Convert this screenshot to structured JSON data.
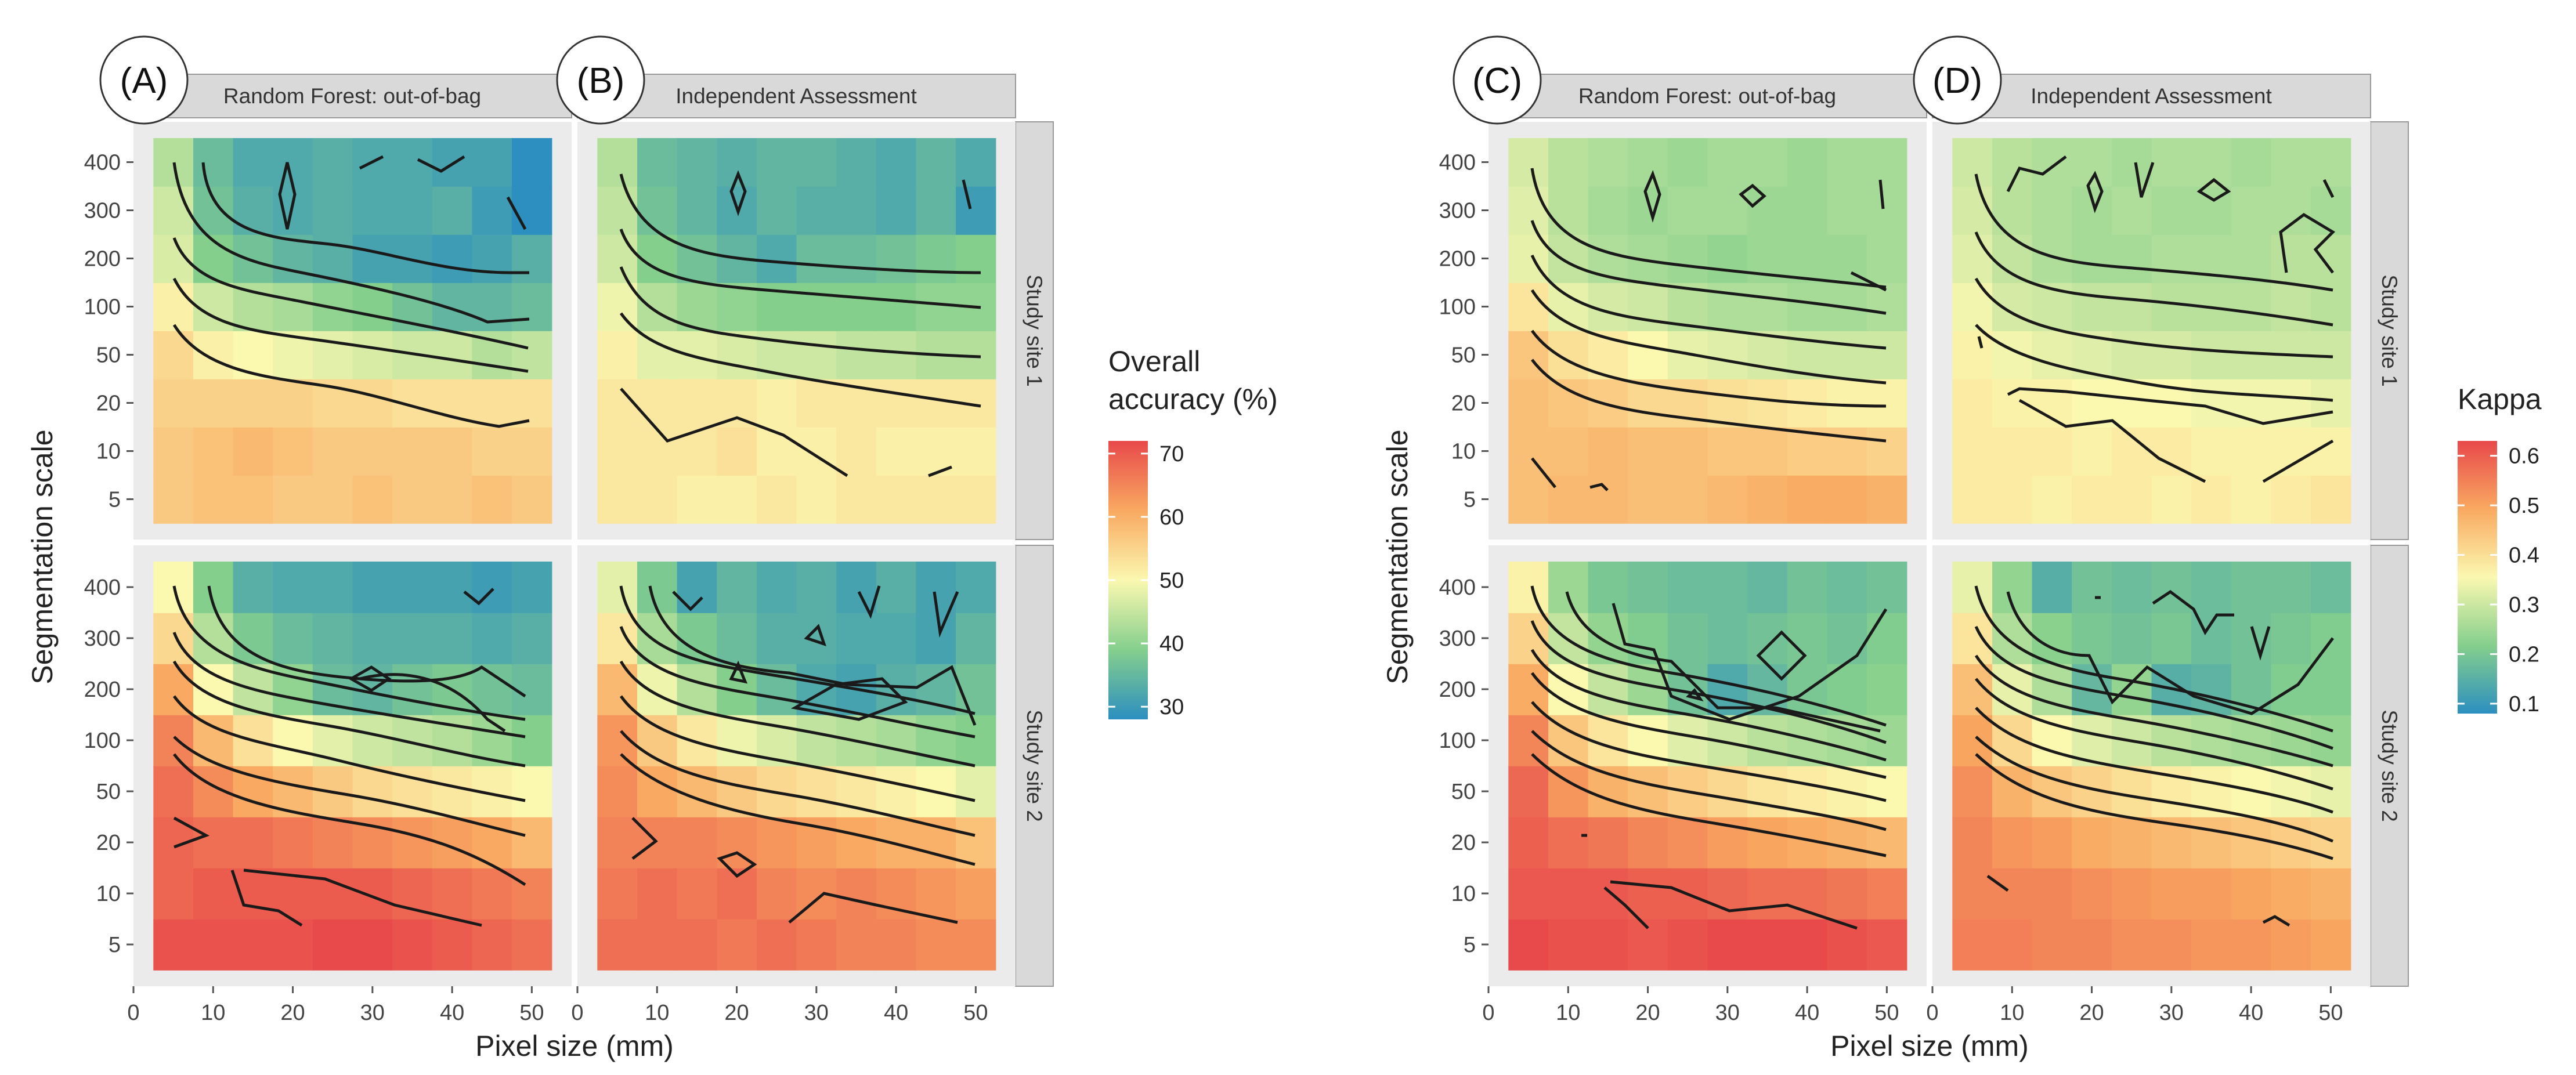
{
  "figure": {
    "letters": [
      "(A)",
      "(B)",
      "(C)",
      "(D)"
    ],
    "strips": {
      "col_oob": "Random Forest: out-of-bag",
      "col_indep": "Independent Assessment",
      "row_site1": "Study site 1",
      "row_site2": "Study site 2"
    },
    "ylabel": "Segmentation scale",
    "xlabel": "Pixel size (mm)",
    "x_ticks": [
      "0",
      "10",
      "20",
      "30",
      "40",
      "50"
    ],
    "y_ticks": [
      "5",
      "10",
      "20",
      "50",
      "100",
      "200",
      "300",
      "400"
    ],
    "legend_left": {
      "title_line1": "Overall",
      "title_line2": "accuracy (%)",
      "ticks": [
        "70",
        "60",
        "50",
        "40",
        "30"
      ]
    },
    "legend_right": {
      "title": "Kappa",
      "ticks": [
        "0.6",
        "0.5",
        "0.4",
        "0.3",
        "0.2",
        "0.1"
      ]
    }
  },
  "colors": {
    "scale_low": "#2c8fbf",
    "scale_mid": "#fbf8b0",
    "scale_high": "#e8494b",
    "strip_fill": "#d9d9d9",
    "panel_bg": "#ebebeb",
    "contour": "#1a1a1a"
  },
  "chart_data": [
    {
      "type": "heatmap",
      "panel": "A",
      "title": "Random Forest: out-of-bag",
      "row": "Study site 1",
      "metric": "Overall accuracy (%)",
      "x": [
        5,
        10,
        15,
        20,
        25,
        30,
        35,
        40,
        45,
        50
      ],
      "y": [
        5,
        10,
        20,
        50,
        100,
        200,
        300,
        400
      ],
      "values": [
        [
          56,
          57,
          57,
          56,
          56,
          57,
          56,
          56,
          57,
          56
        ],
        [
          56,
          57,
          58,
          57,
          56,
          56,
          56,
          56,
          55,
          55
        ],
        [
          55,
          55,
          55,
          55,
          54,
          54,
          53,
          53,
          53,
          53
        ],
        [
          54,
          51,
          50,
          49,
          48,
          47,
          46,
          46,
          44,
          45
        ],
        [
          51,
          46,
          44,
          43,
          41,
          40,
          38,
          36,
          36,
          37
        ],
        [
          47,
          40,
          38,
          36,
          35,
          33,
          33,
          32,
          33,
          35
        ],
        [
          46,
          38,
          35,
          34,
          35,
          34,
          34,
          35,
          32,
          30
        ],
        [
          44,
          37,
          34,
          34,
          35,
          34,
          34,
          33,
          33,
          30
        ]
      ],
      "xlim": [
        0,
        55
      ],
      "xlabel": "Pixel size (mm)",
      "ylabel": "Segmentation scale"
    },
    {
      "type": "heatmap",
      "panel": "B",
      "title": "Independent Assessment",
      "row": "Study site 1",
      "metric": "Overall accuracy (%)",
      "x": [
        5,
        10,
        15,
        20,
        25,
        30,
        35,
        40,
        45,
        50
      ],
      "y": [
        5,
        10,
        20,
        50,
        100,
        200,
        300,
        400
      ],
      "values": [
        [
          52,
          52,
          51,
          51,
          52,
          51,
          52,
          52,
          52,
          52
        ],
        [
          52,
          52,
          52,
          53,
          51,
          51,
          52,
          51,
          51,
          51
        ],
        [
          52,
          52,
          52,
          52,
          51,
          52,
          52,
          52,
          52,
          52
        ],
        [
          51,
          48,
          48,
          47,
          46,
          46,
          45,
          45,
          44,
          44
        ],
        [
          49,
          44,
          42,
          41,
          40,
          40,
          40,
          40,
          41,
          41
        ],
        [
          46,
          40,
          38,
          36,
          34,
          37,
          37,
          38,
          39,
          40
        ],
        [
          45,
          38,
          36,
          34,
          36,
          35,
          35,
          34,
          36,
          32
        ],
        [
          44,
          37,
          36,
          35,
          36,
          36,
          35,
          34,
          36,
          34
        ]
      ],
      "xlim": [
        0,
        55
      ],
      "xlabel": "Pixel size (mm)",
      "ylabel": "Segmentation scale"
    },
    {
      "type": "heatmap",
      "panel": "A",
      "title": "Random Forest: out-of-bag",
      "row": "Study site 2",
      "metric": "Overall accuracy (%)",
      "x": [
        5,
        10,
        15,
        20,
        25,
        30,
        35,
        40,
        45,
        50
      ],
      "y": [
        5,
        10,
        20,
        50,
        100,
        200,
        300,
        400
      ],
      "values": [
        [
          69,
          69,
          69,
          69,
          70,
          70,
          69,
          68,
          67,
          66
        ],
        [
          67,
          68,
          68,
          68,
          68,
          68,
          67,
          66,
          65,
          64
        ],
        [
          67,
          66,
          66,
          65,
          64,
          63,
          62,
          61,
          60,
          58
        ],
        [
          66,
          63,
          60,
          58,
          56,
          54,
          53,
          52,
          51,
          50
        ],
        [
          64,
          58,
          53,
          50,
          48,
          46,
          45,
          44,
          42,
          40
        ],
        [
          60,
          50,
          45,
          41,
          37,
          36,
          38,
          39,
          38,
          37
        ],
        [
          54,
          44,
          39,
          37,
          36,
          35,
          35,
          35,
          34,
          35
        ],
        [
          50,
          40,
          35,
          34,
          34,
          33,
          33,
          33,
          32,
          33
        ]
      ],
      "xlim": [
        0,
        55
      ],
      "xlabel": "Pixel size (mm)",
      "ylabel": "Segmentation scale"
    },
    {
      "type": "heatmap",
      "panel": "B",
      "title": "Independent Assessment",
      "row": "Study site 2",
      "metric": "Overall accuracy (%)",
      "x": [
        5,
        10,
        15,
        20,
        25,
        30,
        35,
        40,
        45,
        50
      ],
      "y": [
        5,
        10,
        20,
        50,
        100,
        200,
        300,
        400
      ],
      "values": [
        [
          66,
          66,
          66,
          65,
          66,
          65,
          64,
          64,
          63,
          63
        ],
        [
          65,
          66,
          65,
          66,
          64,
          63,
          64,
          63,
          62,
          61
        ],
        [
          64,
          64,
          64,
          63,
          62,
          61,
          60,
          59,
          59,
          57
        ],
        [
          63,
          60,
          58,
          56,
          54,
          53,
          52,
          51,
          50,
          48
        ],
        [
          62,
          56,
          52,
          49,
          47,
          45,
          44,
          43,
          41,
          40
        ],
        [
          58,
          49,
          44,
          40,
          37,
          34,
          33,
          35,
          36,
          38
        ],
        [
          52,
          43,
          39,
          37,
          35,
          35,
          34,
          34,
          33,
          36
        ],
        [
          48,
          39,
          33,
          36,
          34,
          35,
          33,
          35,
          33,
          34
        ]
      ],
      "xlim": [
        0,
        55
      ],
      "xlabel": "Pixel size (mm)",
      "ylabel": "Segmentation scale"
    },
    {
      "type": "heatmap",
      "panel": "C",
      "title": "Random Forest: out-of-bag",
      "row": "Study site 1",
      "metric": "Kappa",
      "x": [
        5,
        10,
        15,
        20,
        25,
        30,
        35,
        40,
        45,
        50
      ],
      "y": [
        5,
        10,
        20,
        50,
        100,
        200,
        300,
        400
      ],
      "values": [
        [
          0.44,
          0.45,
          0.45,
          0.44,
          0.44,
          0.45,
          0.46,
          0.47,
          0.47,
          0.46
        ],
        [
          0.44,
          0.44,
          0.45,
          0.44,
          0.44,
          0.43,
          0.43,
          0.42,
          0.42,
          0.41
        ],
        [
          0.44,
          0.43,
          0.42,
          0.4,
          0.4,
          0.39,
          0.38,
          0.37,
          0.36,
          0.36
        ],
        [
          0.43,
          0.39,
          0.37,
          0.35,
          0.33,
          0.32,
          0.31,
          0.3,
          0.3,
          0.3
        ],
        [
          0.38,
          0.33,
          0.31,
          0.3,
          0.28,
          0.27,
          0.27,
          0.26,
          0.26,
          0.27
        ],
        [
          0.33,
          0.29,
          0.27,
          0.26,
          0.25,
          0.24,
          0.25,
          0.25,
          0.25,
          0.26
        ],
        [
          0.32,
          0.28,
          0.26,
          0.25,
          0.26,
          0.26,
          0.25,
          0.25,
          0.26,
          0.26
        ],
        [
          0.31,
          0.28,
          0.27,
          0.26,
          0.25,
          0.26,
          0.26,
          0.25,
          0.26,
          0.26
        ]
      ],
      "xlim": [
        0,
        55
      ],
      "xlabel": "Pixel size (mm)",
      "ylabel": "Segmentation scale"
    },
    {
      "type": "heatmap",
      "panel": "D",
      "title": "Independent Assessment",
      "row": "Study site 1",
      "metric": "Kappa",
      "x": [
        5,
        10,
        15,
        20,
        25,
        30,
        35,
        40,
        45,
        50
      ],
      "y": [
        5,
        10,
        20,
        50,
        100,
        200,
        300,
        400
      ],
      "values": [
        [
          0.37,
          0.37,
          0.36,
          0.37,
          0.37,
          0.36,
          0.37,
          0.36,
          0.37,
          0.38
        ],
        [
          0.37,
          0.37,
          0.37,
          0.36,
          0.37,
          0.37,
          0.36,
          0.36,
          0.36,
          0.36
        ],
        [
          0.37,
          0.36,
          0.36,
          0.35,
          0.35,
          0.35,
          0.34,
          0.34,
          0.34,
          0.33
        ],
        [
          0.36,
          0.34,
          0.33,
          0.32,
          0.31,
          0.31,
          0.3,
          0.3,
          0.3,
          0.3
        ],
        [
          0.34,
          0.31,
          0.3,
          0.29,
          0.29,
          0.28,
          0.28,
          0.28,
          0.29,
          0.28
        ],
        [
          0.32,
          0.29,
          0.27,
          0.26,
          0.26,
          0.27,
          0.27,
          0.27,
          0.28,
          0.28
        ],
        [
          0.31,
          0.28,
          0.27,
          0.26,
          0.27,
          0.26,
          0.26,
          0.27,
          0.27,
          0.26
        ],
        [
          0.3,
          0.28,
          0.27,
          0.27,
          0.26,
          0.27,
          0.27,
          0.26,
          0.27,
          0.27
        ]
      ],
      "xlim": [
        0,
        55
      ],
      "xlabel": "Pixel size (mm)",
      "ylabel": "Segmentation scale"
    },
    {
      "type": "heatmap",
      "panel": "C",
      "title": "Random Forest: out-of-bag",
      "row": "Study site 2",
      "metric": "Kappa",
      "x": [
        5,
        10,
        15,
        20,
        25,
        30,
        35,
        40,
        45,
        50
      ],
      "y": [
        5,
        10,
        20,
        50,
        100,
        200,
        300,
        400
      ],
      "values": [
        [
          0.6,
          0.59,
          0.59,
          0.58,
          0.59,
          0.6,
          0.61,
          0.6,
          0.59,
          0.58
        ],
        [
          0.58,
          0.58,
          0.58,
          0.57,
          0.57,
          0.56,
          0.55,
          0.55,
          0.54,
          0.53
        ],
        [
          0.57,
          0.55,
          0.54,
          0.52,
          0.51,
          0.49,
          0.48,
          0.47,
          0.46,
          0.45
        ],
        [
          0.56,
          0.5,
          0.46,
          0.44,
          0.42,
          0.4,
          0.38,
          0.37,
          0.36,
          0.35
        ],
        [
          0.52,
          0.43,
          0.38,
          0.35,
          0.32,
          0.3,
          0.28,
          0.27,
          0.26,
          0.25
        ],
        [
          0.47,
          0.35,
          0.29,
          0.25,
          0.2,
          0.15,
          0.18,
          0.21,
          0.22,
          0.23
        ],
        [
          0.41,
          0.29,
          0.24,
          0.22,
          0.2,
          0.19,
          0.2,
          0.21,
          0.2,
          0.22
        ],
        [
          0.36,
          0.25,
          0.21,
          0.2,
          0.19,
          0.19,
          0.18,
          0.2,
          0.19,
          0.2
        ]
      ],
      "xlim": [
        0,
        55
      ],
      "xlabel": "Pixel size (mm)",
      "ylabel": "Segmentation scale"
    },
    {
      "type": "heatmap",
      "panel": "D",
      "title": "Independent Assessment",
      "row": "Study site 2",
      "metric": "Kappa",
      "x": [
        5,
        10,
        15,
        20,
        25,
        30,
        35,
        40,
        45,
        50
      ],
      "y": [
        5,
        10,
        20,
        50,
        100,
        200,
        300,
        400
      ],
      "values": [
        [
          0.53,
          0.53,
          0.52,
          0.52,
          0.51,
          0.51,
          0.5,
          0.5,
          0.49,
          0.48
        ],
        [
          0.52,
          0.52,
          0.52,
          0.51,
          0.5,
          0.49,
          0.49,
          0.48,
          0.47,
          0.46
        ],
        [
          0.52,
          0.5,
          0.49,
          0.47,
          0.46,
          0.45,
          0.44,
          0.43,
          0.42,
          0.41
        ],
        [
          0.51,
          0.46,
          0.43,
          0.41,
          0.39,
          0.37,
          0.36,
          0.35,
          0.34,
          0.33
        ],
        [
          0.48,
          0.4,
          0.35,
          0.32,
          0.3,
          0.28,
          0.27,
          0.26,
          0.25,
          0.24
        ],
        [
          0.44,
          0.33,
          0.27,
          0.18,
          0.24,
          0.16,
          0.17,
          0.2,
          0.22,
          0.22
        ],
        [
          0.38,
          0.27,
          0.23,
          0.21,
          0.2,
          0.21,
          0.19,
          0.2,
          0.21,
          0.22
        ],
        [
          0.33,
          0.24,
          0.16,
          0.2,
          0.19,
          0.2,
          0.19,
          0.2,
          0.2,
          0.19
        ]
      ],
      "xlim": [
        0,
        55
      ],
      "xlabel": "Pixel size (mm)",
      "ylabel": "Segmentation scale"
    }
  ]
}
